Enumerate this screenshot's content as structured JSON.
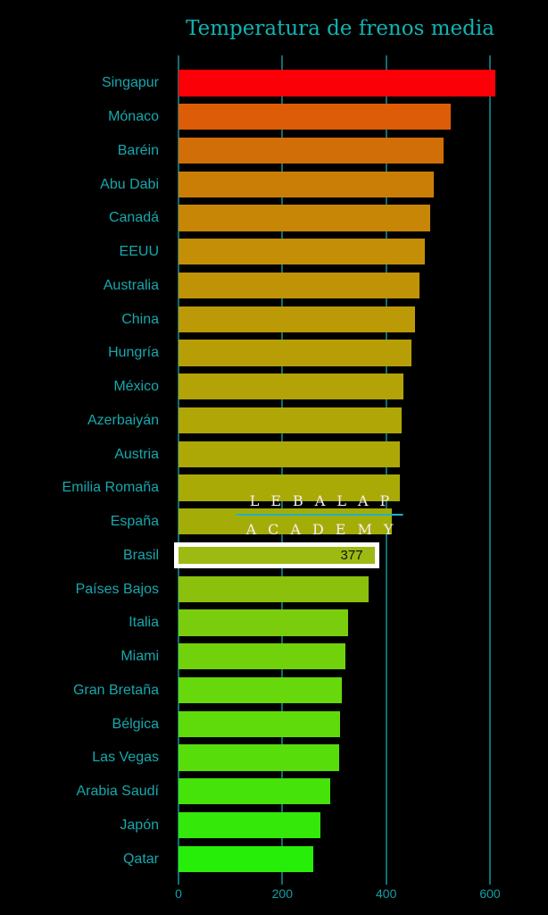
{
  "title": "Temperatura de frenos media",
  "watermark": {
    "line1": "LEBALAP",
    "line2": "ACADEMY"
  },
  "colors": {
    "background": "#000000",
    "title_text": "#10b3b3",
    "category_label_text": "#16a8ae",
    "tick_label_text": "#14a0a8",
    "gridline": "#0e6f75",
    "highlight_border": "#ffffff",
    "highlight_value_text": "#111111",
    "watermark_text": "#f0f0f0",
    "watermark_line": "#18b4c8"
  },
  "chart_data": {
    "type": "bar",
    "orientation": "horizontal",
    "title": "Temperatura de frenos media",
    "xlabel": "",
    "ylabel": "",
    "xlim": [
      0,
      712
    ],
    "x_ticks": [
      0,
      200,
      400,
      600
    ],
    "x_tick_labels": [
      "0",
      "200",
      "400",
      "600"
    ],
    "grid": "vertical-gridlines-on",
    "legend": false,
    "sort": "descending",
    "categories": [
      "Singapur",
      "Mónaco",
      "Baréin",
      "Abu Dabi",
      "Canadá",
      "EEUU",
      "Australia",
      "China",
      "Hungría",
      "México",
      "Azerbaiyán",
      "Austria",
      "Emilia Romaña",
      "España",
      "Brasil",
      "Países Bajos",
      "Italia",
      "Miami",
      "Gran Bretaña",
      "Bélgica",
      "Las Vegas",
      "Arabia Saudí",
      "Japón",
      "Qatar"
    ],
    "values": [
      610,
      525,
      510,
      492,
      485,
      475,
      465,
      456,
      449,
      433,
      430,
      427,
      426,
      411,
      377,
      367,
      326,
      322,
      314,
      311,
      310,
      292,
      274,
      259
    ],
    "bar_colors": [
      "#fb0006",
      "#dd5c07",
      "#d26e07",
      "#cb7e06",
      "#c88606",
      "#c48e06",
      "#c09306",
      "#bc9906",
      "#b89e06",
      "#b4a306",
      "#b0a606",
      "#ada806",
      "#a9aa06",
      "#a4ad07",
      "#9cba12",
      "#8bc00d",
      "#79cd0c",
      "#71d20b",
      "#66d80b",
      "#5fdb0b",
      "#57de0a",
      "#45e30a",
      "#34e909",
      "#27ee08"
    ],
    "highlight": {
      "category": "Brasil",
      "index": 14,
      "value_label": "377",
      "style": "white-border-with-inline-value"
    }
  }
}
